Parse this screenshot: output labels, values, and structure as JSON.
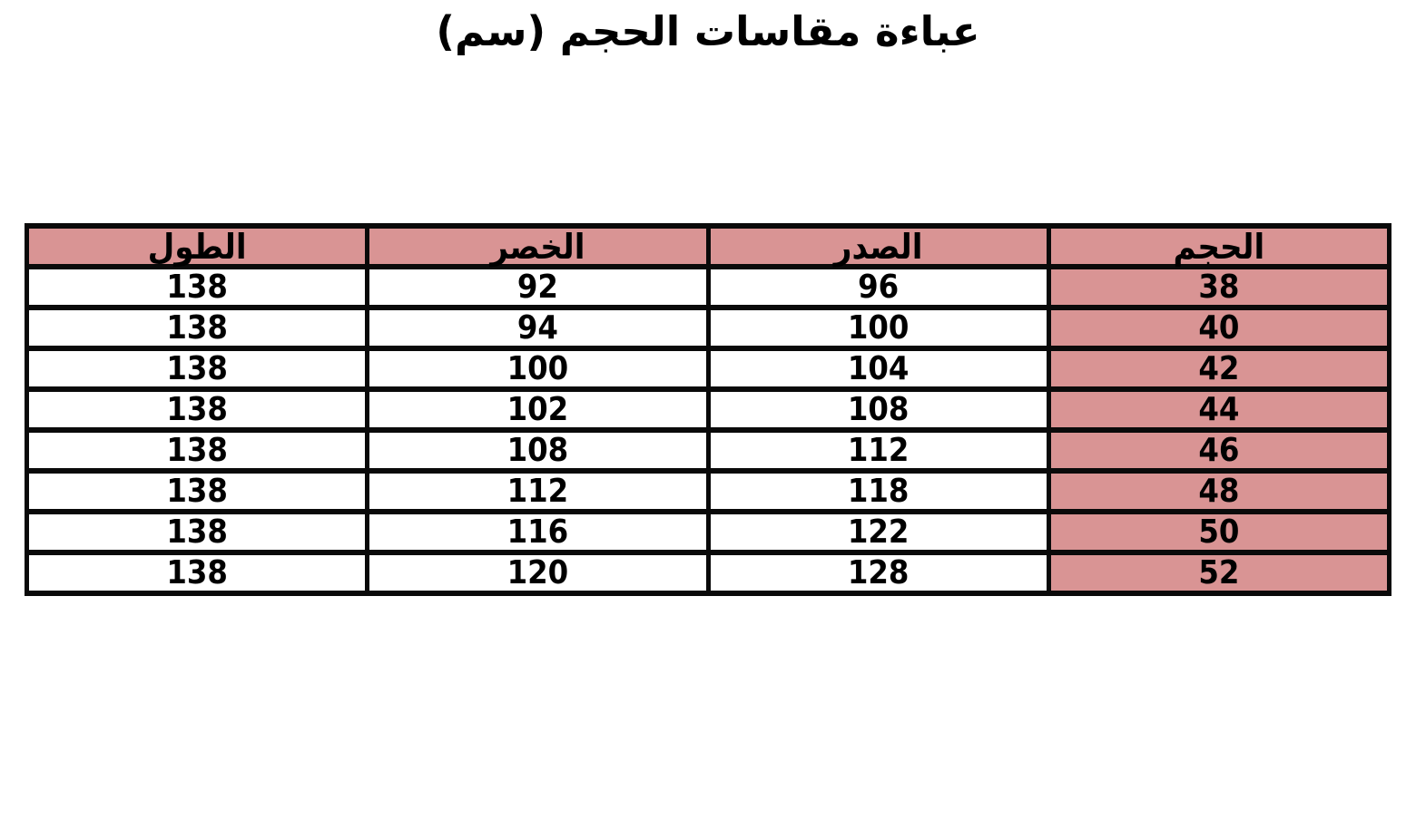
{
  "title": "عباءة مقاسات الحجم (سم)",
  "colors": {
    "highlight": "#d99494",
    "border": "#0a0a0a",
    "text": "#000000",
    "page_bg": "#ffffff"
  },
  "chart_data": {
    "type": "table",
    "title": "عباءة مقاسات الحجم (سم)",
    "direction": "rtl",
    "columns": [
      "الحجم",
      "الصدر",
      "الخصر",
      "الطول"
    ],
    "rows": [
      [
        "38",
        "96",
        "92",
        "138"
      ],
      [
        "40",
        "100",
        "94",
        "138"
      ],
      [
        "42",
        "104",
        "100",
        "138"
      ],
      [
        "44",
        "108",
        "102",
        "138"
      ],
      [
        "46",
        "112",
        "108",
        "138"
      ],
      [
        "48",
        "118",
        "112",
        "138"
      ],
      [
        "50",
        "122",
        "116",
        "138"
      ],
      [
        "52",
        "128",
        "120",
        "138"
      ]
    ],
    "highlighted_column": "الحجم",
    "header_row_highlighted": true,
    "grid": true,
    "legend": "none"
  }
}
